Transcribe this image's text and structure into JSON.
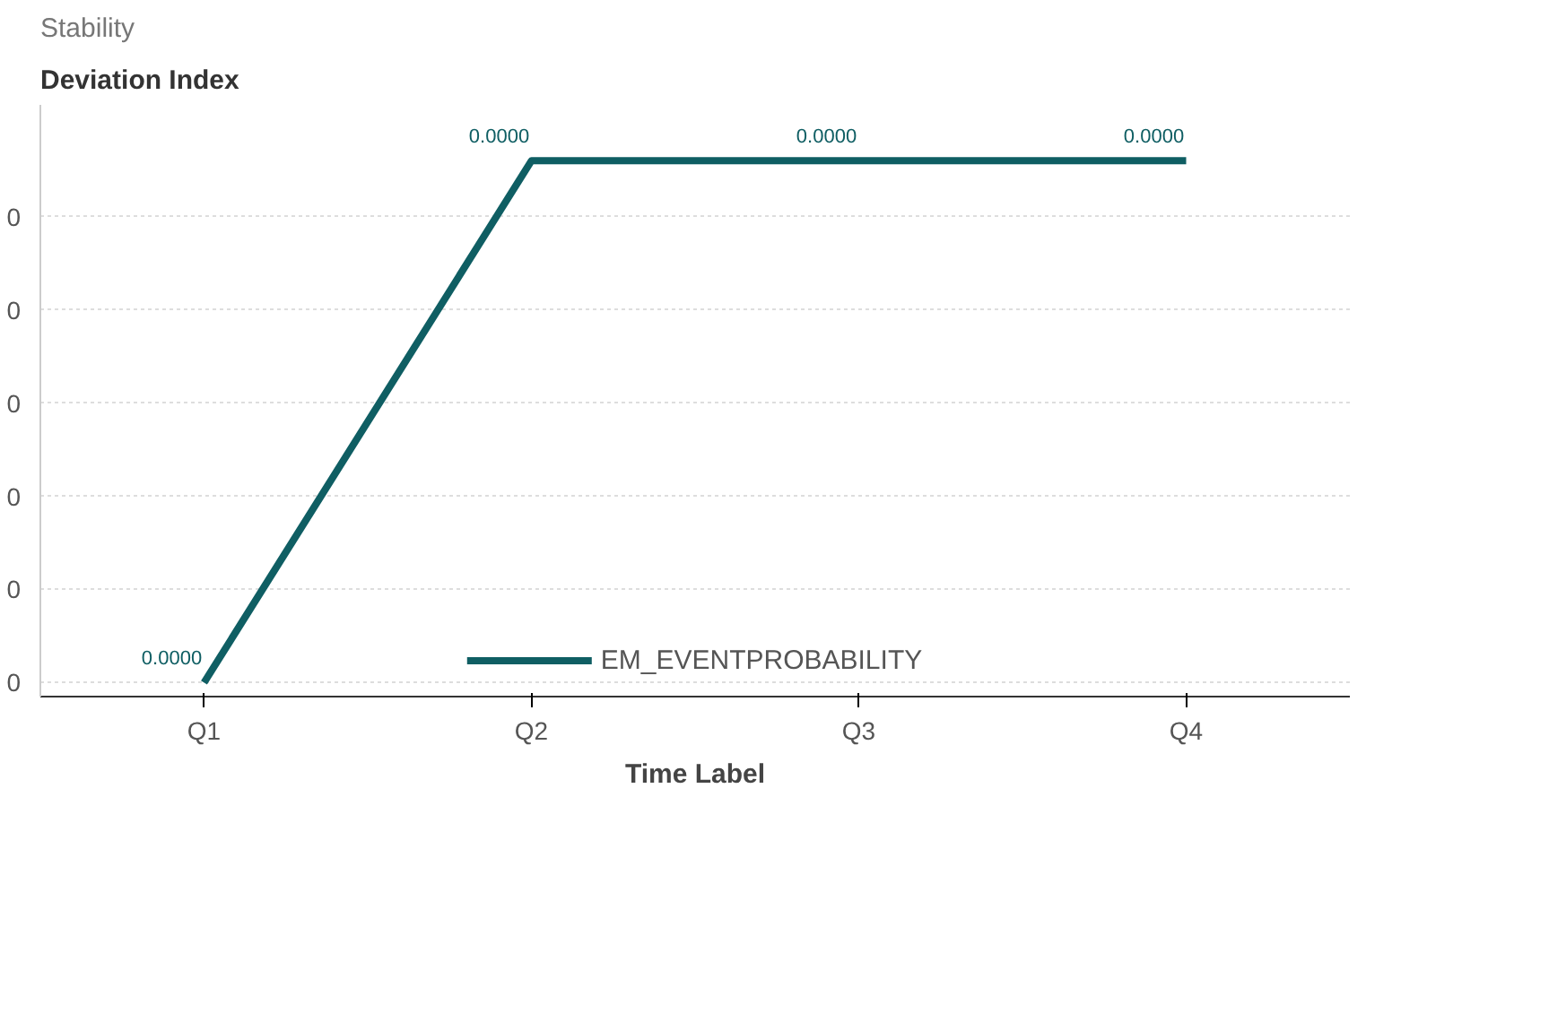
{
  "chart_data": {
    "type": "line",
    "title": "Stability",
    "ylabel": "Deviation Index",
    "xlabel": "Time Label",
    "categories": [
      "Q1",
      "Q2",
      "Q3",
      "Q4"
    ],
    "ylim": [
      -1.5e-07,
      6.2e-06
    ],
    "yticks": [
      {
        "value": 0,
        "label": "0"
      },
      {
        "value": 1e-06,
        "label": "0"
      },
      {
        "value": 2e-06,
        "label": "0"
      },
      {
        "value": 3e-06,
        "label": "0"
      },
      {
        "value": 4e-06,
        "label": "0"
      },
      {
        "value": 5e-06,
        "label": "0"
      }
    ],
    "series": [
      {
        "name": "EM_EVENTPROBABILITY",
        "color": "#0f5e63",
        "values": [
          0,
          5.6e-06,
          5.6e-06,
          5.6e-06
        ],
        "value_labels": [
          "0.0000",
          "0.0000",
          "0.0000",
          "0.0000"
        ]
      }
    ],
    "grid": "y",
    "legend": "bottom",
    "line_style": "solid"
  }
}
